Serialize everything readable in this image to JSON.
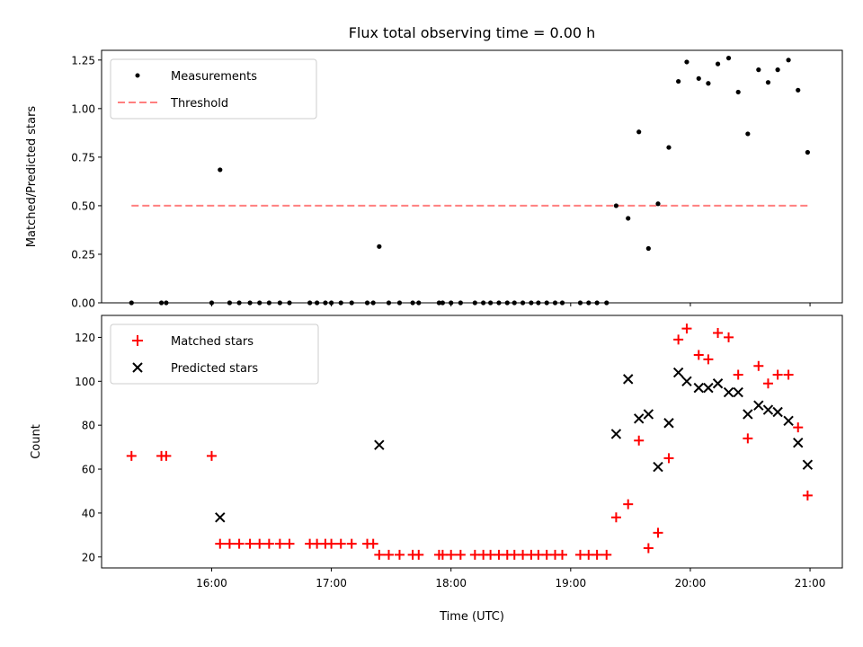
{
  "chart_data": [
    {
      "type": "scatter",
      "panel": "top",
      "title": "Flux total observing time = 0.00 h",
      "xlabel": "",
      "ylabel": "Matched/Predicted stars",
      "xlim": [
        15.08,
        21.27
      ],
      "ylim": [
        0,
        1.3
      ],
      "yticks": [
        {
          "value": 0,
          "label": "0.00"
        },
        {
          "value": 0.25,
          "label": "0.25"
        },
        {
          "value": 0.5,
          "label": "0.50"
        },
        {
          "value": 0.75,
          "label": "0.75"
        },
        {
          "value": 1.0,
          "label": "1.00"
        },
        {
          "value": 1.25,
          "label": "1.25"
        }
      ],
      "legend": [
        {
          "label": "Measurements",
          "marker": "dot",
          "color": "#000000"
        },
        {
          "label": "Threshold",
          "marker": "dashed-line",
          "color": "#ff7f7f"
        }
      ],
      "legend_position": "top-left",
      "threshold": {
        "value": 0.5,
        "x_start": 15.33,
        "x_end": 21.0,
        "color": "#ff7f7f"
      },
      "series": [
        {
          "name": "Measurements",
          "color": "#000000",
          "points": [
            [
              15.33,
              0
            ],
            [
              15.58,
              0
            ],
            [
              15.62,
              0
            ],
            [
              16.0,
              0
            ],
            [
              16.07,
              0.685
            ],
            [
              16.15,
              0
            ],
            [
              16.23,
              0
            ],
            [
              16.32,
              0
            ],
            [
              16.4,
              0
            ],
            [
              16.48,
              0
            ],
            [
              16.57,
              0
            ],
            [
              16.65,
              0
            ],
            [
              16.82,
              0
            ],
            [
              16.88,
              0
            ],
            [
              16.95,
              0
            ],
            [
              17.0,
              0
            ],
            [
              17.08,
              0
            ],
            [
              17.17,
              0
            ],
            [
              17.3,
              0
            ],
            [
              17.35,
              0
            ],
            [
              17.4,
              0.29
            ],
            [
              17.48,
              0
            ],
            [
              17.57,
              0
            ],
            [
              17.68,
              0
            ],
            [
              17.73,
              0
            ],
            [
              17.9,
              0
            ],
            [
              17.93,
              0
            ],
            [
              18.0,
              0
            ],
            [
              18.08,
              0
            ],
            [
              18.2,
              0
            ],
            [
              18.27,
              0
            ],
            [
              18.33,
              0
            ],
            [
              18.4,
              0
            ],
            [
              18.47,
              0
            ],
            [
              18.53,
              0
            ],
            [
              18.6,
              0
            ],
            [
              18.67,
              0
            ],
            [
              18.73,
              0
            ],
            [
              18.8,
              0
            ],
            [
              18.87,
              0
            ],
            [
              18.93,
              0
            ],
            [
              19.08,
              0
            ],
            [
              19.15,
              0
            ],
            [
              19.22,
              0
            ],
            [
              19.3,
              0
            ],
            [
              19.38,
              0.5
            ],
            [
              19.48,
              0.435
            ],
            [
              19.57,
              0.88
            ],
            [
              19.65,
              0.28
            ],
            [
              19.73,
              0.51
            ],
            [
              19.82,
              0.8
            ],
            [
              19.9,
              1.14
            ],
            [
              19.97,
              1.24
            ],
            [
              20.07,
              1.155
            ],
            [
              20.15,
              1.13
            ],
            [
              20.23,
              1.23
            ],
            [
              20.32,
              1.26
            ],
            [
              20.4,
              1.085
            ],
            [
              20.48,
              0.87
            ],
            [
              20.57,
              1.2
            ],
            [
              20.65,
              1.135
            ],
            [
              20.73,
              1.2
            ],
            [
              20.82,
              1.25
            ],
            [
              20.9,
              1.095
            ],
            [
              20.98,
              0.775
            ]
          ]
        }
      ]
    },
    {
      "type": "scatter",
      "panel": "bottom",
      "title": "",
      "xlabel": "Time (UTC)",
      "ylabel": "Count",
      "xlim": [
        15.08,
        21.27
      ],
      "ylim": [
        15,
        130
      ],
      "yticks": [
        {
          "value": 20,
          "label": "20"
        },
        {
          "value": 40,
          "label": "40"
        },
        {
          "value": 60,
          "label": "60"
        },
        {
          "value": 80,
          "label": "80"
        },
        {
          "value": 100,
          "label": "100"
        },
        {
          "value": 120,
          "label": "120"
        }
      ],
      "xticks": [
        {
          "value": 16,
          "label": "16:00"
        },
        {
          "value": 17,
          "label": "17:00"
        },
        {
          "value": 18,
          "label": "18:00"
        },
        {
          "value": 19,
          "label": "19:00"
        },
        {
          "value": 20,
          "label": "20:00"
        },
        {
          "value": 21,
          "label": "21:00"
        }
      ],
      "legend": [
        {
          "label": "Matched stars",
          "marker": "plus",
          "color": "#ff0000"
        },
        {
          "label": "Predicted stars",
          "marker": "x",
          "color": "#000000"
        }
      ],
      "legend_position": "top-left",
      "series": [
        {
          "name": "Matched stars",
          "marker": "plus",
          "color": "#ff0000",
          "points": [
            [
              15.33,
              66
            ],
            [
              15.58,
              66
            ],
            [
              15.62,
              66
            ],
            [
              16.0,
              66
            ],
            [
              16.07,
              26
            ],
            [
              16.15,
              26
            ],
            [
              16.23,
              26
            ],
            [
              16.32,
              26
            ],
            [
              16.4,
              26
            ],
            [
              16.48,
              26
            ],
            [
              16.57,
              26
            ],
            [
              16.65,
              26
            ],
            [
              16.82,
              26
            ],
            [
              16.88,
              26
            ],
            [
              16.95,
              26
            ],
            [
              17.0,
              26
            ],
            [
              17.08,
              26
            ],
            [
              17.17,
              26
            ],
            [
              17.3,
              26
            ],
            [
              17.35,
              26
            ],
            [
              17.4,
              21
            ],
            [
              17.48,
              21
            ],
            [
              17.57,
              21
            ],
            [
              17.68,
              21
            ],
            [
              17.73,
              21
            ],
            [
              17.9,
              21
            ],
            [
              17.93,
              21
            ],
            [
              18.0,
              21
            ],
            [
              18.08,
              21
            ],
            [
              18.2,
              21
            ],
            [
              18.27,
              21
            ],
            [
              18.33,
              21
            ],
            [
              18.4,
              21
            ],
            [
              18.47,
              21
            ],
            [
              18.53,
              21
            ],
            [
              18.6,
              21
            ],
            [
              18.67,
              21
            ],
            [
              18.73,
              21
            ],
            [
              18.8,
              21
            ],
            [
              18.87,
              21
            ],
            [
              18.93,
              21
            ],
            [
              19.08,
              21
            ],
            [
              19.15,
              21
            ],
            [
              19.22,
              21
            ],
            [
              19.3,
              21
            ],
            [
              19.38,
              38
            ],
            [
              19.48,
              44
            ],
            [
              19.57,
              73
            ],
            [
              19.65,
              24
            ],
            [
              19.73,
              31
            ],
            [
              19.82,
              65
            ],
            [
              19.9,
              119
            ],
            [
              19.97,
              124
            ],
            [
              20.07,
              112
            ],
            [
              20.15,
              110
            ],
            [
              20.23,
              122
            ],
            [
              20.32,
              120
            ],
            [
              20.4,
              103
            ],
            [
              20.48,
              74
            ],
            [
              20.57,
              107
            ],
            [
              20.65,
              99
            ],
            [
              20.73,
              103
            ],
            [
              20.82,
              103
            ],
            [
              20.9,
              79
            ],
            [
              20.98,
              48
            ]
          ]
        },
        {
          "name": "Predicted stars",
          "marker": "x",
          "color": "#000000",
          "points": [
            [
              16.07,
              38
            ],
            [
              17.4,
              71
            ],
            [
              19.38,
              76
            ],
            [
              19.48,
              101
            ],
            [
              19.57,
              83
            ],
            [
              19.65,
              85
            ],
            [
              19.73,
              61
            ],
            [
              19.82,
              81
            ],
            [
              19.9,
              104
            ],
            [
              19.97,
              100
            ],
            [
              20.07,
              97
            ],
            [
              20.15,
              97
            ],
            [
              20.23,
              99
            ],
            [
              20.32,
              95
            ],
            [
              20.4,
              95
            ],
            [
              20.48,
              85
            ],
            [
              20.57,
              89
            ],
            [
              20.65,
              87
            ],
            [
              20.73,
              86
            ],
            [
              20.82,
              82
            ],
            [
              20.9,
              72
            ],
            [
              20.98,
              62
            ]
          ]
        }
      ]
    }
  ]
}
